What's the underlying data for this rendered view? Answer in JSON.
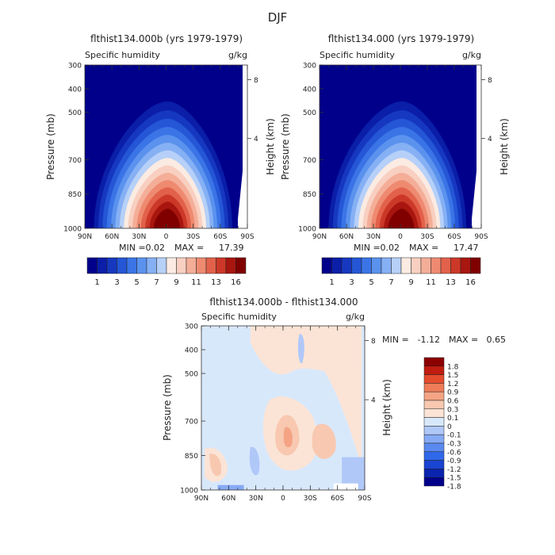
{
  "page": {
    "title": "DJF"
  },
  "colors": {
    "humidity_levels": [
      "#00008b",
      "#0a1ea8",
      "#1638c0",
      "#2456d6",
      "#3a74e6",
      "#5a92ee",
      "#86b0f4",
      "#b6d0f8",
      "#fbebe2",
      "#f8cfc0",
      "#f4ae98",
      "#ee8a70",
      "#e2614a",
      "#cc3828",
      "#a8160f",
      "#800000"
    ],
    "diff_levels": [
      "#00008b",
      "#0a24b0",
      "#1a44d2",
      "#3068ea",
      "#5a8aef",
      "#86aaf4",
      "#b0c8f8",
      "#d8e8fb",
      "#fbe4d6",
      "#f8c8b0",
      "#f4a484",
      "#ee7c58",
      "#e44c2c",
      "#c01c10",
      "#8b0000"
    ]
  },
  "chart_data": [
    {
      "type": "contour",
      "title": "flthist134.000b (yrs 1979-1979)",
      "left_label": "Specific humidity",
      "right_label": "g/kg",
      "ylabel": "Pressure (mb)",
      "ylabel_right": "Height (km)",
      "x_ticks": [
        "90N",
        "60N",
        "30N",
        "0",
        "30S",
        "60S",
        "90S"
      ],
      "y_ticks": [
        "300",
        "400",
        "500",
        "700",
        "850",
        "1000"
      ],
      "y_ticks_right": [
        "8",
        "4"
      ],
      "stats": {
        "min_label": "MIN =",
        "min": "0.02",
        "max_label": "MAX =",
        "max": "17.39"
      },
      "colorbar_labels": [
        "1",
        "3",
        "5",
        "7",
        "9",
        "11",
        "13",
        "16"
      ]
    },
    {
      "type": "contour",
      "title": "flthist134.000 (yrs 1979-1979)",
      "left_label": "Specific humidity",
      "right_label": "g/kg",
      "ylabel": "Pressure (mb)",
      "ylabel_right": "Height (km)",
      "x_ticks": [
        "90N",
        "60N",
        "30N",
        "0",
        "30S",
        "60S",
        "90S"
      ],
      "y_ticks": [
        "300",
        "400",
        "500",
        "700",
        "850",
        "1000"
      ],
      "y_ticks_right": [
        "8",
        "4"
      ],
      "stats": {
        "min_label": "MIN =",
        "min": "0.02",
        "max_label": "MAX =",
        "max": "17.47"
      },
      "colorbar_labels": [
        "1",
        "3",
        "5",
        "7",
        "9",
        "11",
        "13",
        "16"
      ]
    },
    {
      "type": "contour",
      "title": "flthist134.000b - flthist134.000",
      "left_label": "Specific humidity",
      "right_label": "g/kg",
      "ylabel": "Pressure (mb)",
      "ylabel_right": "Height (km)",
      "x_ticks": [
        "90N",
        "60N",
        "30N",
        "0",
        "30S",
        "60S",
        "90S"
      ],
      "y_ticks": [
        "300",
        "400",
        "500",
        "700",
        "850",
        "1000"
      ],
      "y_ticks_right": [
        "8",
        "4"
      ],
      "stats": {
        "min_label": "MIN =",
        "min": "-1.12",
        "max_label": "MAX =",
        "max": "0.65"
      },
      "colorbar_labels": [
        "1.8",
        "1.5",
        "1.2",
        "0.9",
        "0.6",
        "0.3",
        "0.1",
        "0",
        "-0.1",
        "-0.3",
        "-0.6",
        "-0.9",
        "-1.2",
        "-1.5",
        "-1.8"
      ]
    }
  ]
}
